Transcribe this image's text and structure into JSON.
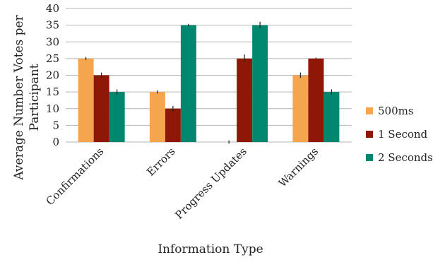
{
  "chart_data": {
    "type": "bar",
    "categories": [
      "Confirmations",
      "Errors",
      "Progress Updates",
      "Warnings"
    ],
    "series": [
      {
        "name": "500ms",
        "color": "#F6A54F",
        "values": [
          25,
          15,
          0,
          20
        ],
        "errors": [
          0.5,
          0.5,
          0.5,
          0.8
        ]
      },
      {
        "name": "1 Second",
        "color": "#8E1707",
        "values": [
          20,
          10,
          25,
          25
        ],
        "errors": [
          0.8,
          0.8,
          1.2,
          0.3
        ]
      },
      {
        "name": "2 Seconds",
        "color": "#00876F",
        "values": [
          15,
          35,
          35,
          15
        ],
        "errors": [
          0.8,
          0.4,
          1.0,
          0.8
        ]
      }
    ],
    "xlabel": "Information Type",
    "ylabel_lines": [
      "Average Number Votes per",
      "Participant"
    ],
    "ylim": [
      0,
      40
    ],
    "yticks": [
      0,
      5,
      10,
      15,
      20,
      25,
      30,
      35,
      40
    ],
    "grid": true,
    "legend_position": "right"
  }
}
